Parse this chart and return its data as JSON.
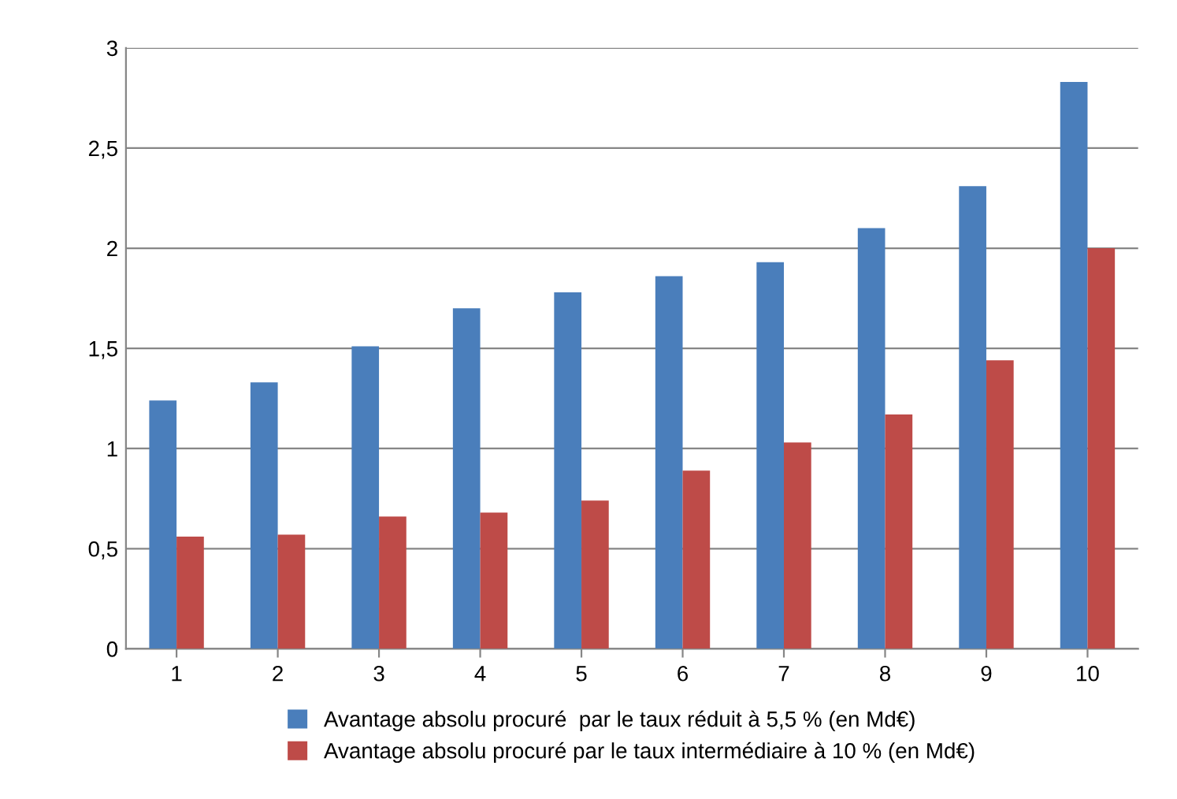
{
  "chart_data": {
    "type": "bar",
    "categories": [
      "1",
      "2",
      "3",
      "4",
      "5",
      "6",
      "7",
      "8",
      "9",
      "10"
    ],
    "series": [
      {
        "name": "Avantage absolu procuré  par le taux réduit à 5,5 % (en Md€)",
        "color": "#4a7ebb",
        "values": [
          1.24,
          1.33,
          1.51,
          1.7,
          1.78,
          1.86,
          1.93,
          2.1,
          2.31,
          2.83
        ]
      },
      {
        "name": "Avantage absolu procuré par le taux intermédiaire à 10 % (en Md€)",
        "color": "#be4b48",
        "values": [
          0.56,
          0.57,
          0.66,
          0.68,
          0.74,
          0.89,
          1.03,
          1.17,
          1.44,
          2.0
        ]
      }
    ],
    "ylim": [
      0,
      3
    ],
    "yticks": [
      0,
      {
        "value": 0.5,
        "label": "0,5"
      },
      1,
      {
        "value": 1.5,
        "label": "1,5"
      },
      2,
      {
        "value": 2.5,
        "label": "2,5"
      },
      3
    ],
    "grid": "y",
    "legend": "bottom"
  }
}
